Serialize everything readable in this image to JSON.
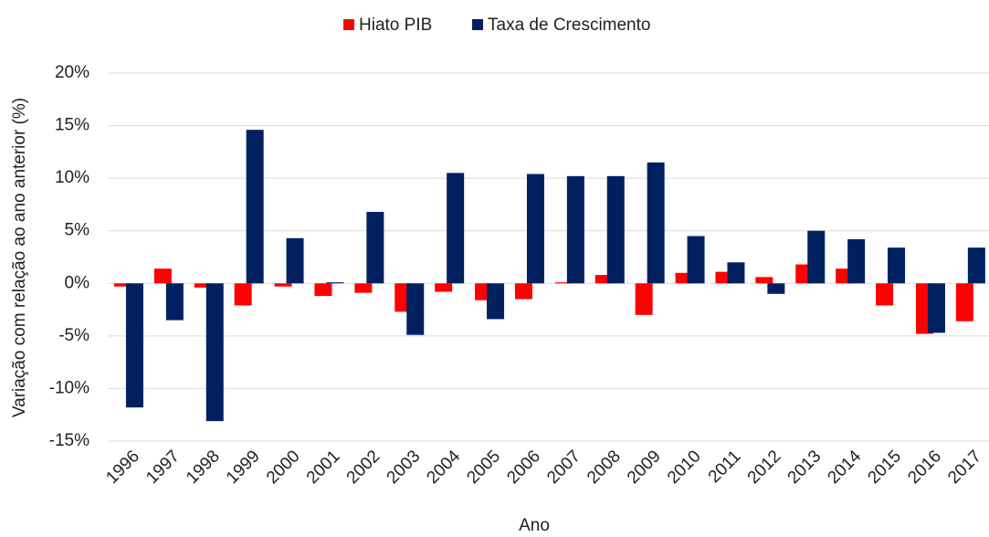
{
  "chart_data": {
    "type": "bar",
    "x_label": "Ano",
    "y_label": "Variação com relação ao ano anterior (%)",
    "categories": [
      "1996",
      "1997",
      "1998",
      "1999",
      "2000",
      "2001",
      "2002",
      "2003",
      "2004",
      "2005",
      "2006",
      "2007",
      "2008",
      "2009",
      "2010",
      "2011",
      "2012",
      "2013",
      "2014",
      "2015",
      "2016",
      "2017"
    ],
    "series": [
      {
        "name": "Hiato PIB",
        "color": "#ff0000",
        "values": [
          -0.3,
          1.4,
          -0.4,
          -2.1,
          -0.3,
          -1.2,
          -0.9,
          -2.7,
          -0.8,
          -1.6,
          -1.5,
          0.1,
          0.8,
          -3.0,
          1.0,
          1.1,
          0.6,
          1.8,
          1.4,
          -2.1,
          -4.8,
          -3.6
        ]
      },
      {
        "name": "Taxa de Crescimento",
        "color": "#002060",
        "values": [
          -11.8,
          -3.5,
          -13.1,
          14.6,
          4.3,
          0.1,
          6.8,
          -4.9,
          10.5,
          -3.4,
          10.4,
          10.2,
          10.2,
          11.5,
          4.5,
          2.0,
          -1.0,
          5.0,
          4.2,
          3.4,
          -4.7,
          3.4
        ]
      }
    ],
    "ylim": [
      -15,
      20
    ],
    "yticks": [
      {
        "value": -15,
        "label": "-15%"
      },
      {
        "value": -10,
        "label": "-10%"
      },
      {
        "value": -5,
        "label": "-5%"
      },
      {
        "value": 0,
        "label": "0%"
      },
      {
        "value": 5,
        "label": "5%"
      },
      {
        "value": 10,
        "label": "10%"
      },
      {
        "value": 15,
        "label": "15%"
      },
      {
        "value": 20,
        "label": "20%"
      }
    ],
    "grid": true,
    "legend": "top"
  }
}
